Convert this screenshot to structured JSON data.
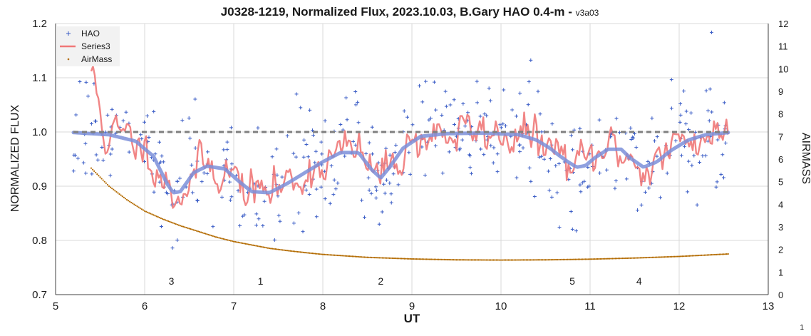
{
  "chart_data": {
    "type": "scatter",
    "title": "J0328-1219, Normalized Flux, 2023.10.03, B.Gary HAO 0.4-m -",
    "title_suffix": "v3a03",
    "xlabel": "UT",
    "ylabel": "NORMALIZED FLUX",
    "y2label": "AIRMASS",
    "xlim": [
      5,
      13
    ],
    "ylim": [
      0.7,
      1.2
    ],
    "y2lim": [
      0,
      12
    ],
    "xticks": [
      "5",
      "6",
      "7",
      "8",
      "9",
      "10",
      "11",
      "12",
      "13"
    ],
    "yticks": [
      "0.7",
      "0.8",
      "0.9",
      "1.0",
      "1.1",
      "1.2"
    ],
    "y2ticks": [
      "0",
      "1",
      "2",
      "3",
      "4",
      "5",
      "6",
      "7",
      "8",
      "9",
      "10",
      "11",
      "12"
    ],
    "grid": true,
    "legend_position": "top-left",
    "legend": [
      "HAO",
      "Series3",
      "AirMass"
    ],
    "colors": {
      "hao": "#3d5fc7",
      "series3": "#f07878",
      "airmass": "#b36b00",
      "model": "#7b8fd9",
      "reference": "#7f7f7f"
    },
    "reference_level": 1.0,
    "hao_x_range": [
      5.2,
      12.55
    ],
    "hao_point_count": 430,
    "hao_scatter_sigma": 0.05,
    "hao_seed": 7,
    "series3_x_range": [
      5.4,
      12.55
    ],
    "series3_point_count": 360,
    "series3_noise": 0.018,
    "series3_seed": 11,
    "airmass_x_range": [
      5.4,
      12.55
    ],
    "airmass_point_count": 430,
    "airmass_curve": [
      [
        5.4,
        5.6
      ],
      [
        5.6,
        4.8
      ],
      [
        5.8,
        4.2
      ],
      [
        6.0,
        3.7
      ],
      [
        6.2,
        3.35
      ],
      [
        6.4,
        3.05
      ],
      [
        6.6,
        2.8
      ],
      [
        6.8,
        2.55
      ],
      [
        7.0,
        2.35
      ],
      [
        7.2,
        2.2
      ],
      [
        7.4,
        2.05
      ],
      [
        7.6,
        1.95
      ],
      [
        7.8,
        1.86
      ],
      [
        8.0,
        1.78
      ],
      [
        8.5,
        1.65
      ],
      [
        9.0,
        1.58
      ],
      [
        9.5,
        1.54
      ],
      [
        10.0,
        1.53
      ],
      [
        10.5,
        1.54
      ],
      [
        11.0,
        1.57
      ],
      [
        11.5,
        1.62
      ],
      [
        12.0,
        1.69
      ],
      [
        12.55,
        1.8
      ]
    ],
    "model_curve": [
      [
        5.2,
        0.999
      ],
      [
        5.6,
        0.995
      ],
      [
        5.9,
        0.983
      ],
      [
        6.1,
        0.955
      ],
      [
        6.25,
        0.905
      ],
      [
        6.32,
        0.888
      ],
      [
        6.4,
        0.89
      ],
      [
        6.55,
        0.925
      ],
      [
        6.7,
        0.937
      ],
      [
        6.9,
        0.932
      ],
      [
        7.05,
        0.91
      ],
      [
        7.2,
        0.89
      ],
      [
        7.4,
        0.888
      ],
      [
        7.6,
        0.905
      ],
      [
        7.8,
        0.925
      ],
      [
        8.0,
        0.945
      ],
      [
        8.2,
        0.962
      ],
      [
        8.4,
        0.962
      ],
      [
        8.55,
        0.93
      ],
      [
        8.65,
        0.915
      ],
      [
        8.75,
        0.935
      ],
      [
        8.9,
        0.97
      ],
      [
        9.1,
        0.992
      ],
      [
        9.4,
        0.997
      ],
      [
        9.8,
        0.998
      ],
      [
        10.2,
        0.995
      ],
      [
        10.4,
        0.985
      ],
      [
        10.55,
        0.97
      ],
      [
        10.65,
        0.957
      ],
      [
        10.75,
        0.945
      ],
      [
        10.85,
        0.935
      ],
      [
        10.95,
        0.938
      ],
      [
        11.05,
        0.952
      ],
      [
        11.2,
        0.968
      ],
      [
        11.35,
        0.968
      ],
      [
        11.45,
        0.952
      ],
      [
        11.6,
        0.935
      ],
      [
        11.75,
        0.945
      ],
      [
        11.9,
        0.965
      ],
      [
        12.1,
        0.985
      ],
      [
        12.3,
        0.995
      ],
      [
        12.55,
        0.999
      ]
    ],
    "event_labels": [
      {
        "text": "3",
        "x": 6.3
      },
      {
        "text": "1",
        "x": 7.3
      },
      {
        "text": "2",
        "x": 8.65
      },
      {
        "text": "5",
        "x": 10.8
      },
      {
        "text": "4",
        "x": 11.55
      }
    ],
    "corner_note": "1"
  }
}
